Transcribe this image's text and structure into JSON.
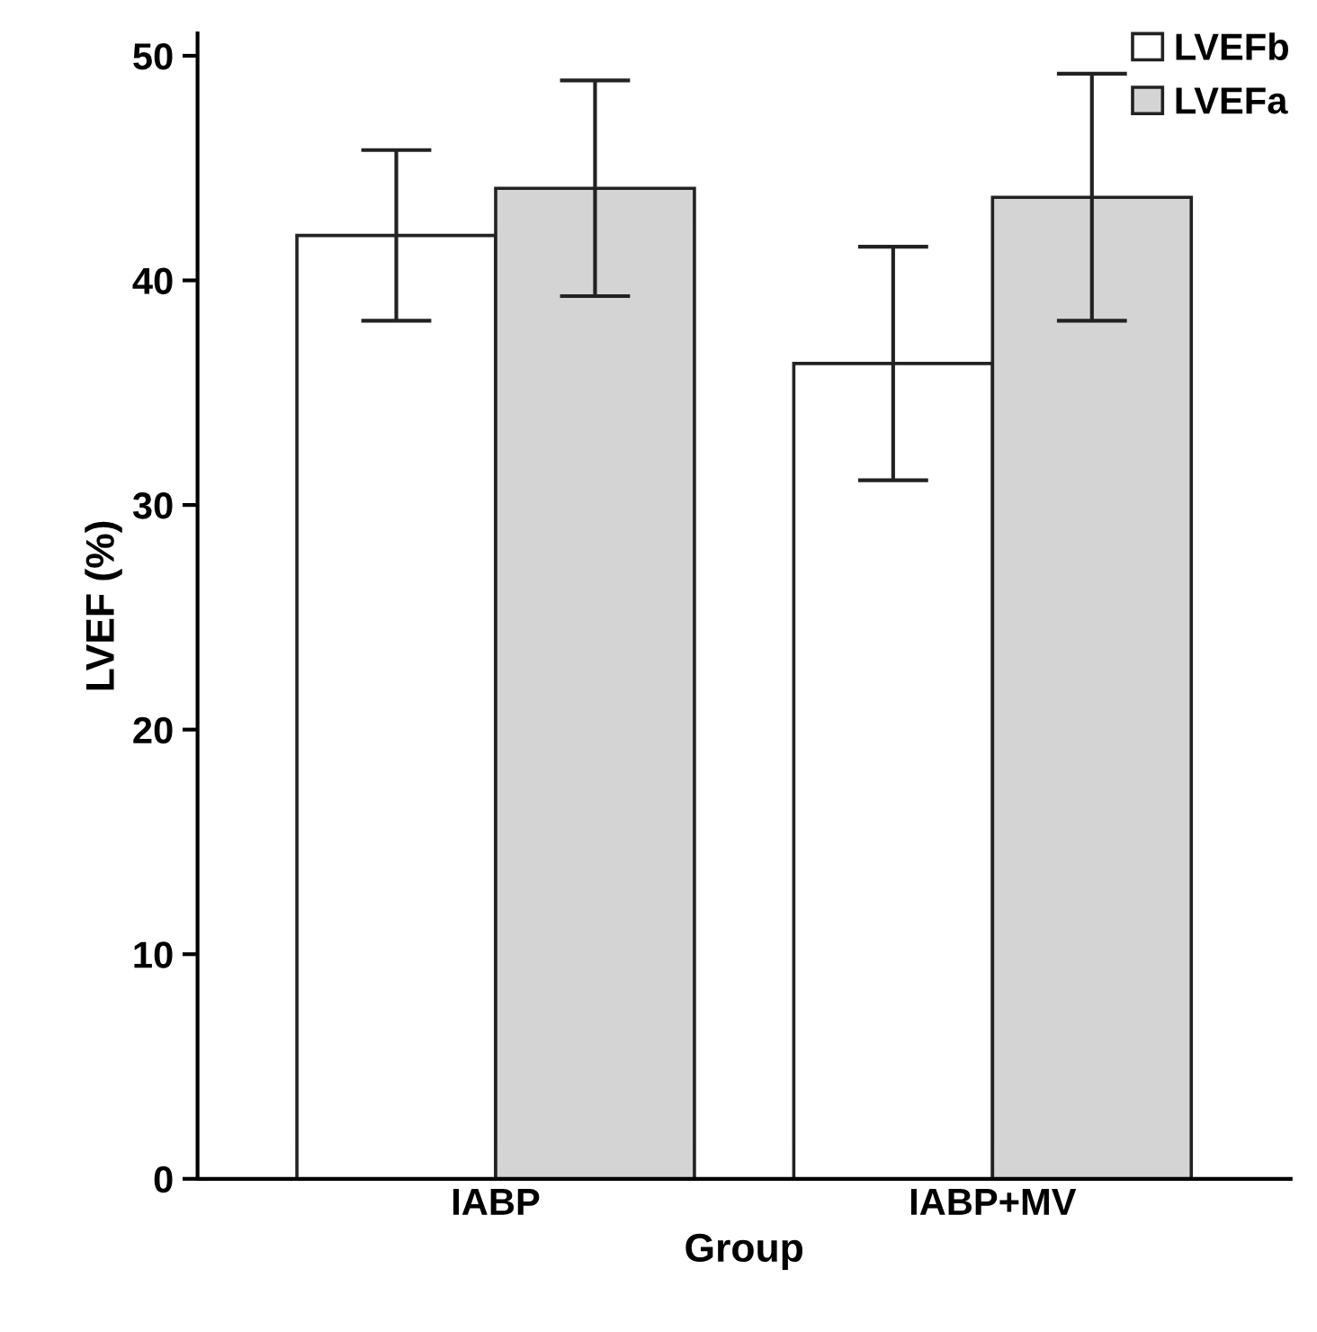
{
  "chart_data": {
    "type": "bar",
    "xlabel": "Group",
    "ylabel": "LVEF (%)",
    "categories": [
      "IABP",
      "IABP+MV"
    ],
    "series": [
      {
        "name": "LVEFb",
        "color": "#ffffff",
        "values": [
          42.0,
          36.3
        ],
        "errors": [
          3.8,
          5.2
        ]
      },
      {
        "name": "LVEFa",
        "color": "#d4d4d4",
        "values": [
          44.1,
          43.7
        ],
        "errors": [
          4.8,
          5.5
        ]
      }
    ],
    "ylim": [
      0,
      51
    ],
    "yticks": [
      0,
      10,
      20,
      30,
      40,
      50
    ],
    "grid": false,
    "legend": "top right"
  }
}
